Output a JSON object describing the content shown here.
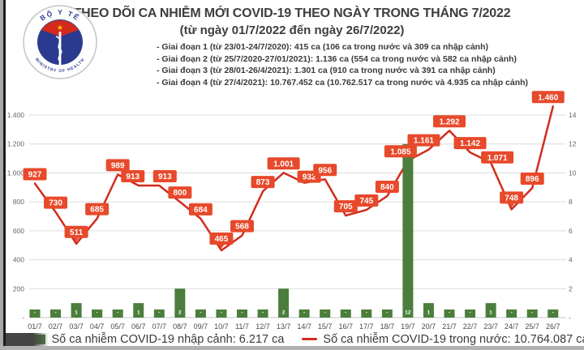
{
  "header": {
    "title": "THEO DÕI CA NHIỄM MỚI COVID-19 THEO NGÀY TRONG THÁNG 7/2022",
    "subtitle": "(từ ngày 01/7/2022 đến ngày 26/7/2022)",
    "bullets": [
      "- Giai đoạn 1 (từ 23/01-24/7/2020): 415 ca (106 ca trong nước và 309 ca nhập cảnh)",
      "- Giai đoạn 2 (từ 25/7/2020-27/01/2021): 1.136 ca (554 ca trong nước và 582 ca nhập cảnh)",
      "- Giai đoạn 3 (từ 28/01-26/4/2021): 1.301 ca (910 ca trong nước và 391 ca nhập cảnh)",
      "- Giai đoạn 4 (từ 27/4/2021): 10.767.452 ca (10.762.517 ca trong nước và 4.935 ca nhập cảnh)"
    ],
    "logo": {
      "top_text": "BỘ Y TẾ",
      "bottom_text": "MINISTRY OF HEALTH"
    }
  },
  "chart_data": {
    "type": "line+bar",
    "title": "THEO DÕI CA NHIỄM MỚI COVID-19 THEO NGÀY TRONG THÁNG 7/2022",
    "categories": [
      "01/7",
      "02/7",
      "03/7",
      "04/7",
      "05/7",
      "06/7",
      "07/7",
      "08/7",
      "09/7",
      "10/7",
      "11/7",
      "12/7",
      "13/7",
      "14/7",
      "15/7",
      "16/7",
      "17/7",
      "18/7",
      "19/7",
      "20/7",
      "21/7",
      "22/7",
      "23/7",
      "24/7",
      "25/7",
      "26/7"
    ],
    "series": [
      {
        "name": "Số ca nhiễm COVID-19 trong nước",
        "type": "line",
        "axis": "left",
        "color": "#d32b1e",
        "values": [
          927,
          730,
          511,
          685,
          989,
          913,
          913,
          800,
          684,
          465,
          568,
          873,
          1001,
          932,
          956,
          705,
          745,
          840,
          1085,
          1161,
          1292,
          1142,
          1071,
          748,
          896,
          1460
        ],
        "labels": [
          "927",
          "730",
          "511",
          "685",
          "989",
          "913",
          "913",
          "800",
          "684",
          "465",
          "568",
          "873",
          "1.001",
          "932",
          "956",
          "705",
          "745",
          "840",
          "1.085",
          "1.161",
          "1.292",
          "1.142",
          "1.071",
          "748",
          "896",
          "1.460"
        ]
      },
      {
        "name": "Số ca nhiễm COVID-19 nhập cảnh",
        "type": "bar",
        "axis": "right",
        "color": "#4b7e3c",
        "values": [
          0,
          0,
          1,
          0,
          0,
          1,
          0,
          2,
          0,
          0,
          0,
          0,
          2,
          0,
          0,
          0,
          0,
          0,
          12,
          1,
          0,
          0,
          1,
          0,
          0,
          0
        ],
        "labels": [
          "-",
          "-",
          "1",
          "-",
          "-",
          "1",
          "-",
          "2",
          "-",
          "-",
          "-",
          "-",
          "2",
          "-",
          "-",
          "-",
          "-",
          "-",
          "12",
          "1",
          "-",
          "-",
          "1",
          "-",
          "-",
          "-"
        ]
      }
    ],
    "left_axis": {
      "ticks": [
        "1.400",
        "1.200",
        "1.000",
        "800",
        "600",
        "400",
        "200",
        "-"
      ],
      "min": 0,
      "max": 1400
    },
    "right_axis": {
      "ticks": [
        "14",
        "12",
        "10",
        "8",
        "6",
        "4",
        "2",
        "-"
      ],
      "min": 0,
      "max": 14
    },
    "grid": true,
    "legend_position": "bottom",
    "label_box_color": "#e7492b"
  },
  "legend": {
    "items": [
      {
        "swatch": "bar",
        "color": "#4b7e3c",
        "label": "Số ca nhiễm COVID-19 nhập cảnh: 6.217 ca"
      },
      {
        "swatch": "line",
        "color": "#d32b1e",
        "label": "Số ca nhiễm COVID-19 trong nước: 10.764.087 ca"
      }
    ]
  },
  "colors": {
    "line": "#d32b1e",
    "bar": "#4b7e3c",
    "label_box": "#e7492b",
    "grid": "#dcdcdc",
    "axis_text": "#666666",
    "title_text": "#3d3d3d"
  }
}
